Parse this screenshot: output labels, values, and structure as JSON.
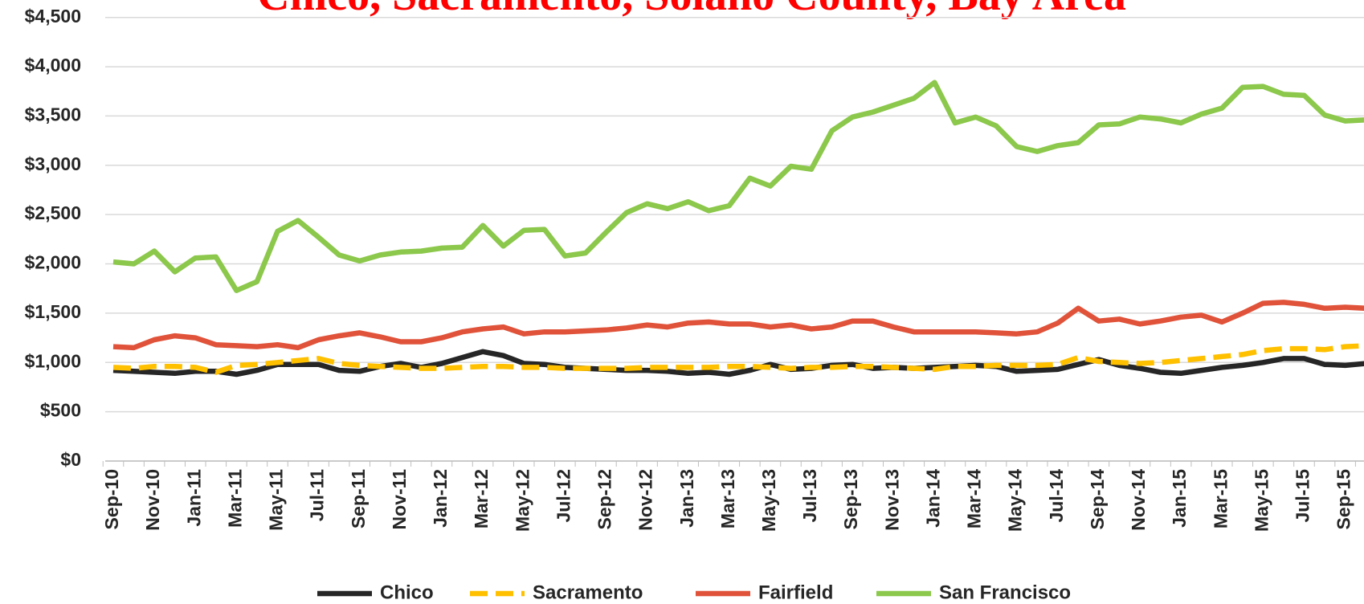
{
  "chart_data": {
    "type": "line",
    "title": "Chico, Sacramento, Solano County, Bay Area",
    "categories": [
      "Sep-10",
      null,
      "Nov-10",
      null,
      "Jan-11",
      null,
      "Mar-11",
      null,
      "May-11",
      null,
      "Jul-11",
      null,
      "Sep-11",
      null,
      "Nov-11",
      null,
      "Jan-12",
      null,
      "Mar-12",
      null,
      "May-12",
      null,
      "Jul-12",
      null,
      "Sep-12",
      null,
      "Nov-12",
      null,
      "Jan-13",
      null,
      "Mar-13",
      null,
      "May-13",
      null,
      "Jul-13",
      null,
      "Sep-13",
      null,
      "Nov-13",
      null,
      "Jan-14",
      null,
      "Mar-14",
      null,
      "May-14",
      null,
      "Jul-14",
      null,
      "Sep-14",
      null,
      "Nov-14",
      null,
      "Jan-15",
      null,
      "Mar-15",
      null,
      "May-15",
      null,
      "Jul-15",
      null,
      "Sep-15",
      null
    ],
    "series": [
      {
        "name": "Chico",
        "color": "#262626",
        "dash": false,
        "values": [
          920,
          910,
          900,
          890,
          910,
          910,
          880,
          920,
          980,
          980,
          980,
          920,
          910,
          960,
          990,
          950,
          990,
          1050,
          1110,
          1070,
          990,
          980,
          950,
          940,
          930,
          920,
          920,
          910,
          890,
          900,
          880,
          920,
          980,
          930,
          940,
          970,
          980,
          940,
          950,
          940,
          950,
          960,
          970,
          960,
          910,
          920,
          930,
          980,
          1030,
          970,
          940,
          900,
          890,
          920,
          950,
          970,
          1000,
          1040,
          1040,
          980,
          970,
          990
        ]
      },
      {
        "name": "Sacramento",
        "color": "#FFC000",
        "dash": true,
        "values": [
          950,
          940,
          960,
          960,
          950,
          900,
          970,
          980,
          1000,
          1020,
          1040,
          990,
          970,
          960,
          950,
          940,
          940,
          950,
          960,
          960,
          950,
          950,
          940,
          940,
          940,
          940,
          950,
          950,
          950,
          950,
          960,
          960,
          950,
          940,
          950,
          950,
          960,
          960,
          950,
          940,
          930,
          960,
          960,
          970,
          970,
          970,
          980,
          1050,
          1010,
          1000,
          990,
          1000,
          1020,
          1040,
          1060,
          1080,
          1120,
          1140,
          1140,
          1130,
          1160,
          1170
        ]
      },
      {
        "name": "Fairfield",
        "color": "#E0533A",
        "dash": false,
        "values": [
          1160,
          1150,
          1230,
          1270,
          1250,
          1180,
          1170,
          1160,
          1180,
          1150,
          1230,
          1270,
          1300,
          1260,
          1210,
          1210,
          1250,
          1310,
          1340,
          1360,
          1290,
          1310,
          1310,
          1320,
          1330,
          1350,
          1380,
          1360,
          1400,
          1410,
          1390,
          1390,
          1360,
          1380,
          1340,
          1360,
          1420,
          1420,
          1360,
          1310,
          1310,
          1310,
          1310,
          1300,
          1290,
          1310,
          1400,
          1550,
          1420,
          1440,
          1390,
          1420,
          1460,
          1480,
          1410,
          1500,
          1600,
          1610,
          1590,
          1550,
          1560,
          1550
        ]
      },
      {
        "name": "San Francisco",
        "color": "#8CC84B",
        "dash": false,
        "values": [
          2020,
          2000,
          2130,
          1920,
          2060,
          2070,
          1730,
          1820,
          2330,
          2440,
          2270,
          2090,
          2030,
          2090,
          2120,
          2130,
          2160,
          2170,
          2390,
          2180,
          2340,
          2350,
          2080,
          2110,
          2320,
          2520,
          2610,
          2560,
          2630,
          2540,
          2590,
          2870,
          2790,
          2990,
          2960,
          3350,
          3490,
          3540,
          3610,
          3680,
          3840,
          3430,
          3490,
          3400,
          3190,
          3140,
          3200,
          3230,
          3410,
          3420,
          3490,
          3470,
          3430,
          3520,
          3580,
          3790,
          3800,
          3720,
          3710,
          3510,
          3450,
          3460
        ]
      }
    ],
    "ylim": [
      0,
      4500
    ],
    "yticks": [
      {
        "value": 0,
        "label": "$0"
      },
      {
        "value": 500,
        "label": "$500"
      },
      {
        "value": 1000,
        "label": "$1,000"
      },
      {
        "value": 1500,
        "label": "$1,500"
      },
      {
        "value": 2000,
        "label": "$2,000"
      },
      {
        "value": 2500,
        "label": "$2,500"
      },
      {
        "value": 3000,
        "label": "$3,000"
      },
      {
        "value": 3500,
        "label": "$3,500"
      },
      {
        "value": 4000,
        "label": "$4,000"
      },
      {
        "value": 4500,
        "label": "$4,500"
      }
    ],
    "grid": true,
    "legend": "bottom"
  }
}
